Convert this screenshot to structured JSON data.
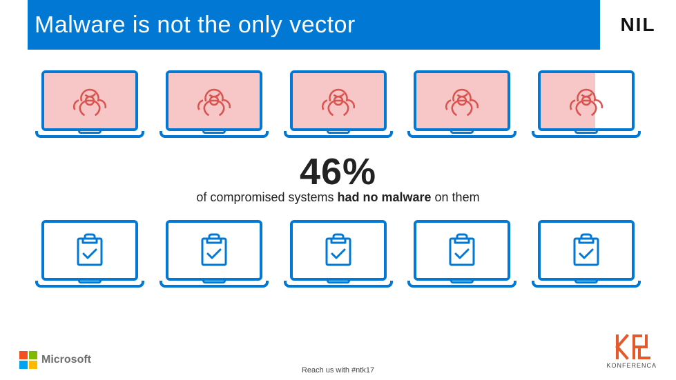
{
  "header": {
    "title": "Malware is not the only vector",
    "bg_color": "#0078d4",
    "title_color": "#ffffff",
    "nil_logo_text": "NIL"
  },
  "infographic": {
    "laptop_outline_color": "#0078d4",
    "top_row": {
      "fill_color": "#f7c6c6",
      "icon": "biohazard",
      "icon_color": "#d9534f",
      "laptops": [
        {
          "fill_pct": 100
        },
        {
          "fill_pct": 100
        },
        {
          "fill_pct": 100
        },
        {
          "fill_pct": 100
        },
        {
          "fill_pct": 60
        }
      ]
    },
    "statistic": {
      "value": "46%",
      "subtitle_prefix": "of compromised systems ",
      "subtitle_bold": "had no malware",
      "subtitle_suffix": " on them",
      "value_color": "#222222",
      "value_fontsize": 54,
      "sub_fontsize": 18
    },
    "bottom_row": {
      "icon": "clipboard-check",
      "icon_color": "#0078d4",
      "laptops": [
        {},
        {},
        {},
        {},
        {}
      ]
    }
  },
  "footer": {
    "ms_logo_text": "Microsoft",
    "ms_colors": [
      "#f25022",
      "#7fba00",
      "#00a4ef",
      "#ffb900"
    ],
    "center_text": "Reach us with #ntk17",
    "konferenca_text": "KONFERENCA",
    "konferenca_color": "#e55a2b"
  }
}
